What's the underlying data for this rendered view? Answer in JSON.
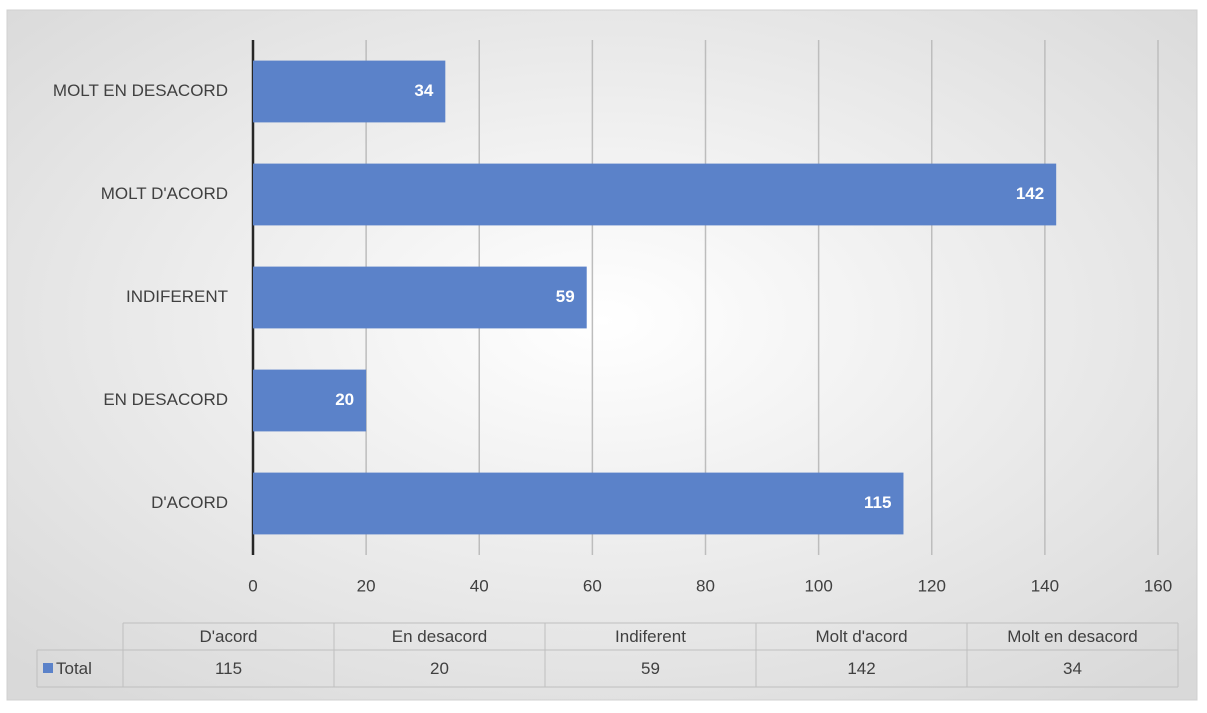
{
  "chart_data": {
    "type": "bar",
    "orientation": "horizontal",
    "categories": [
      "D'ACORD",
      "EN DESACORD",
      "INDIFERENT",
      "MOLT D'ACORD",
      "MOLT EN DESACORD"
    ],
    "series": [
      {
        "name": "Total",
        "color": "#5b82c9",
        "values": [
          115,
          20,
          59,
          142,
          34
        ]
      }
    ],
    "xlim": [
      0,
      160
    ],
    "xticks": [
      0,
      20,
      40,
      60,
      80,
      100,
      120,
      140,
      160
    ],
    "grid": true,
    "data_table": {
      "columns": [
        "D'acord",
        "En desacord",
        "Indiferent",
        "Molt d'acord",
        "Molt en desacord"
      ]
    }
  }
}
